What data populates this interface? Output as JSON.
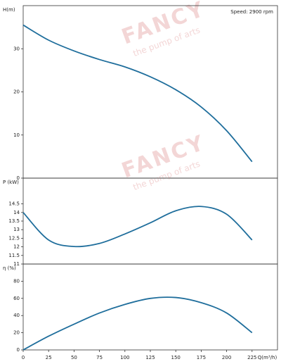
{
  "chart_data": [
    {
      "type": "line",
      "y_label": "H(m)",
      "annotation": "Speed: 2900 rpm",
      "watermark": "FANCY",
      "watermark_sub": "the pump of arts",
      "x": [
        0,
        25,
        50,
        75,
        100,
        125,
        150,
        175,
        200,
        225
      ],
      "values": [
        35.5,
        32,
        29.5,
        27.5,
        25.8,
        23.5,
        20.5,
        16.5,
        11,
        3.8
      ],
      "color": "#1f6e9c",
      "xlim": [
        0,
        250
      ],
      "ylim": [
        0,
        40
      ],
      "yticks": [
        0,
        10,
        20,
        30
      ]
    },
    {
      "type": "line",
      "y_label": "P (kW)",
      "watermark": "FANCY",
      "watermark_sub": "the pump of arts",
      "x": [
        0,
        25,
        50,
        75,
        100,
        125,
        150,
        175,
        200,
        225
      ],
      "values": [
        14.0,
        12.4,
        12.02,
        12.2,
        12.75,
        13.4,
        14.1,
        14.35,
        13.9,
        12.4
      ],
      "color": "#1f6e9c",
      "xlim": [
        0,
        250
      ],
      "ylim": [
        11,
        16
      ],
      "yticks": [
        11,
        11.5,
        12,
        12.5,
        13,
        13.5,
        14,
        14.5
      ]
    },
    {
      "type": "line",
      "y_label": "η (%)",
      "x_label": "Q(m³/h)",
      "x": [
        0,
        25,
        50,
        75,
        100,
        125,
        150,
        175,
        200,
        225
      ],
      "values": [
        0,
        16,
        30,
        43,
        53,
        60,
        61,
        55,
        43,
        20
      ],
      "color": "#1f6e9c",
      "xlim": [
        0,
        250
      ],
      "xticks": [
        0,
        25,
        50,
        75,
        100,
        125,
        150,
        175,
        200,
        225
      ],
      "ylim": [
        0,
        100
      ],
      "yticks": [
        0,
        20,
        40,
        60,
        80
      ]
    }
  ]
}
